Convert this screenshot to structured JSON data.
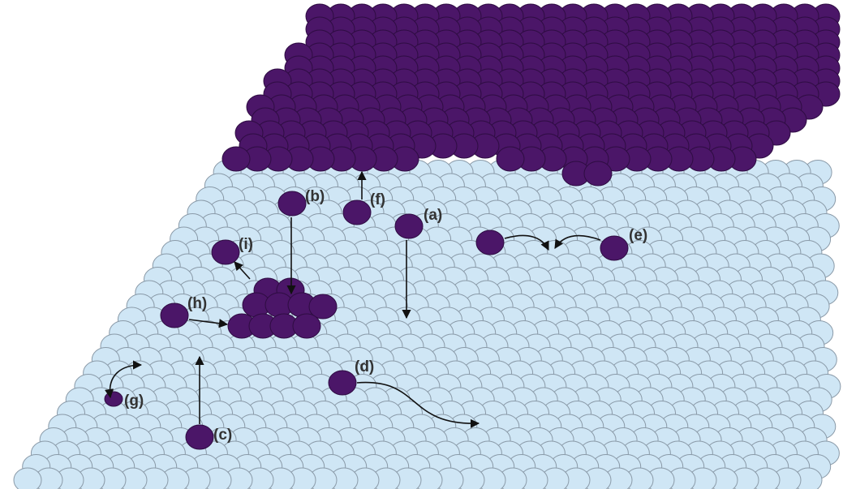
{
  "colors": {
    "substrate_fill": "#cfe6f5",
    "substrate_stroke": "#8a9aa8",
    "adatom_fill": "#4b1668",
    "adatom_stroke": "#2e0c42",
    "arrow": "#111111"
  },
  "labels": {
    "a": "(a)",
    "b": "(b)",
    "c": "(c)",
    "d": "(d)",
    "e": "(e)",
    "f": "(f)",
    "g": "(g)",
    "h": "(h)",
    "i": "(i)"
  }
}
